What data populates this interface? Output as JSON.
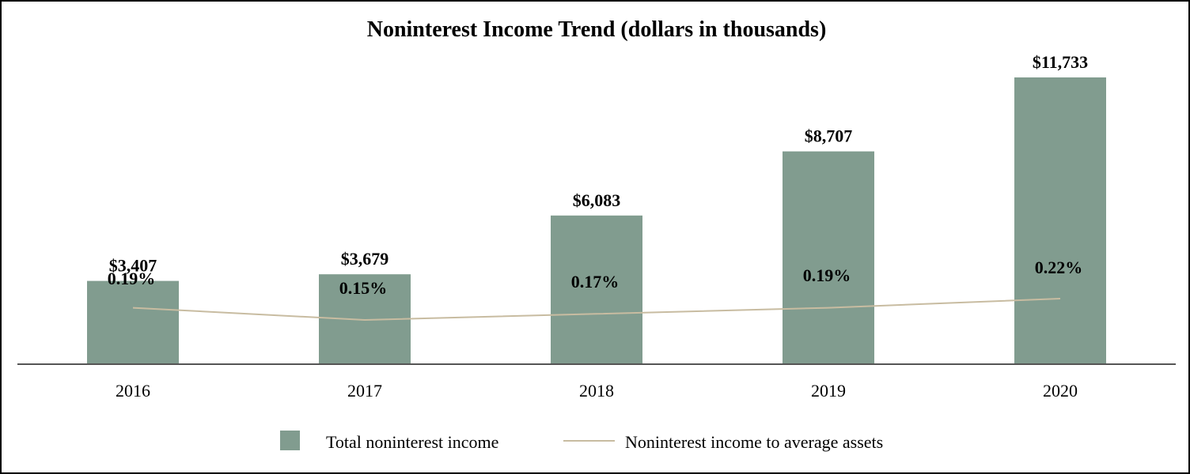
{
  "chart_data": {
    "type": "bar",
    "title": "Noninterest Income Trend (dollars in thousands)",
    "categories": [
      "2016",
      "2017",
      "2018",
      "2019",
      "2020"
    ],
    "series": [
      {
        "name": "Total noninterest income",
        "kind": "bar",
        "values": [
          3407,
          3679,
          6083,
          8707,
          11733
        ],
        "labels": [
          "$3,407",
          "$3,679",
          "$6,083",
          "$8,707",
          "$11,733"
        ],
        "color": "#819c8f"
      },
      {
        "name": "Noninterest income to average assets",
        "kind": "line",
        "values": [
          0.19,
          0.15,
          0.17,
          0.19,
          0.22
        ],
        "labels": [
          "0.19%",
          "0.15%",
          "0.17%",
          "0.19%",
          "0.22%"
        ],
        "color": "#c8bca1"
      }
    ],
    "xlabel": "",
    "ylabel": "",
    "ylim": [
      0,
      11733
    ],
    "grid": false,
    "legend": "bottom-center"
  }
}
